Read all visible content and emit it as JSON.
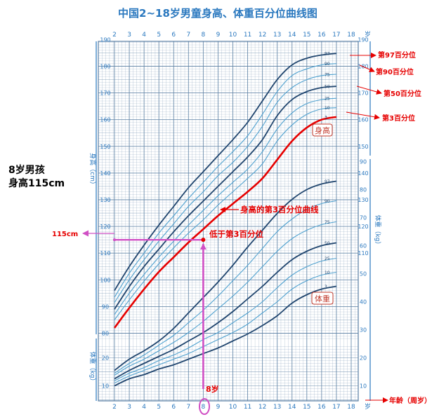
{
  "chart_data": {
    "type": "line",
    "title": "中国2~18岁男童身高、体重百分位曲线图",
    "x_ticks": [
      "2",
      "3",
      "4",
      "5",
      "6",
      "7",
      "8",
      "9",
      "10",
      "11",
      "12",
      "13",
      "14",
      "15",
      "16",
      "17",
      "18"
    ],
    "x_unit": "岁",
    "xlim": [
      2,
      18
    ],
    "height_axis": {
      "label": "身高（cm）",
      "ticks": [
        "80",
        "90",
        "100",
        "110",
        "120",
        "130",
        "140",
        "150",
        "160",
        "170",
        "180",
        "190"
      ],
      "ylim": [
        78,
        190
      ]
    },
    "weight_axis_upper": {
      "label": "体重（kg）",
      "ticks": [
        "10",
        "20",
        "30",
        "40",
        "50",
        "60",
        "70",
        "80",
        "90"
      ],
      "ylim": [
        5,
        90
      ]
    },
    "weight_axis_lower": {
      "label": "体重（kg）",
      "ticks": [
        "10",
        "20"
      ],
      "ylim": [
        5,
        25
      ]
    },
    "x": [
      2,
      3,
      4,
      5,
      6,
      7,
      8,
      9,
      10,
      11,
      12,
      13,
      14,
      15,
      16,
      17,
      18
    ],
    "series": [
      {
        "name": "97",
        "group": "height",
        "values": [
          96,
          105,
          113,
          120.5,
          127.5,
          134.5,
          140.5,
          146.5,
          152.5,
          159,
          167,
          175,
          180.5,
          183,
          184.2,
          184.8,
          null
        ]
      },
      {
        "name": "90",
        "group": "height",
        "values": [
          93.5,
          102.5,
          110,
          117.5,
          124,
          130.5,
          136.5,
          142.5,
          148,
          154,
          162,
          170.5,
          176.5,
          179,
          180.5,
          181,
          null
        ]
      },
      {
        "name": "75",
        "group": "height",
        "values": [
          91.5,
          100,
          107.5,
          114.5,
          121,
          127.5,
          133,
          139,
          144,
          150,
          157.5,
          166.5,
          172,
          175,
          176.5,
          177,
          null
        ]
      },
      {
        "name": "50",
        "group": "height",
        "values": [
          89,
          97.5,
          105,
          111.5,
          118,
          124,
          129.5,
          135,
          140.5,
          146,
          152.5,
          161.5,
          167.5,
          170.5,
          172,
          172.5,
          null
        ]
      },
      {
        "name": "25",
        "group": "height",
        "values": [
          87,
          95,
          102,
          108.5,
          114.5,
          120.5,
          126,
          131.5,
          136.5,
          141.5,
          148,
          156.5,
          162.5,
          166,
          167.5,
          168,
          null
        ]
      },
      {
        "name": "10",
        "group": "height",
        "values": [
          85,
          92.5,
          99.5,
          106,
          112,
          117.5,
          122.5,
          128,
          133,
          138,
          143.5,
          152,
          158,
          162,
          164,
          164.5,
          null
        ]
      },
      {
        "name": "3",
        "group": "height",
        "values": [
          82,
          89.5,
          96.5,
          103,
          108.5,
          114,
          119,
          124,
          128.5,
          133,
          138,
          145,
          152,
          157,
          160,
          161,
          null
        ]
      },
      {
        "name": "97",
        "group": "weight",
        "values": [
          15.5,
          19.5,
          22.5,
          26,
          30.5,
          36,
          41.5,
          47,
          53,
          59.5,
          65.5,
          71.5,
          76.5,
          80,
          82,
          83,
          null
        ]
      },
      {
        "name": "90",
        "group": "weight",
        "values": [
          14.5,
          18,
          21,
          24.5,
          28,
          32.5,
          37,
          42,
          47.5,
          53,
          59,
          65,
          69.5,
          73,
          75,
          76,
          null
        ]
      },
      {
        "name": "75",
        "group": "weight",
        "values": [
          13.8,
          17,
          19.5,
          22.5,
          25.5,
          29,
          33,
          37.5,
          42,
          47,
          52.5,
          58,
          62.5,
          65.5,
          67.5,
          68.5,
          null
        ]
      },
      {
        "name": "50",
        "group": "weight",
        "values": [
          12.5,
          15.5,
          18,
          20.5,
          23,
          26,
          29,
          32.5,
          36.5,
          41,
          45.5,
          50.5,
          55,
          58,
          60,
          61,
          null
        ]
      },
      {
        "name": "25",
        "group": "weight",
        "values": [
          11.8,
          14.5,
          16.5,
          19,
          21,
          23.5,
          26.5,
          29,
          32.5,
          36,
          40,
          45,
          49.5,
          52.5,
          54.5,
          55.5,
          null
        ]
      },
      {
        "name": "10",
        "group": "weight",
        "values": [
          11,
          13.5,
          15.5,
          17.5,
          19.5,
          21.5,
          24,
          26.5,
          29,
          32,
          36,
          40,
          44.5,
          47.5,
          49.5,
          50.5,
          null
        ]
      },
      {
        "name": "3",
        "group": "weight",
        "values": [
          10,
          12.5,
          14,
          16,
          17.5,
          19.5,
          21.5,
          23.5,
          26,
          28.5,
          31.5,
          35,
          39.5,
          42.5,
          44.5,
          45.5,
          null
        ]
      }
    ],
    "box_labels": {
      "height": "身高",
      "weight": "体重"
    },
    "annotations": {
      "child_label": "8岁男孩",
      "child_height": "身高115cm",
      "left_value": "115cm",
      "below_p3": "低于第3百分位",
      "p3_curve": "身高的第3百分位曲线",
      "p97": "第97百分位",
      "p90": "第90百分位",
      "p50": "第50百分位",
      "p3": "第3百分位",
      "age_marker": "8岁",
      "axis_note": "年龄（周岁）"
    },
    "point": {
      "age": 8,
      "height": 115
    },
    "colors": {
      "grid": "#5b7fa3",
      "main_curve": "#20456e",
      "light_curve": "#4fa1cf",
      "highlight": "#e60000",
      "marker": "#d04fc4",
      "title": "#2a78bf",
      "axis_text": "#2a78bf"
    }
  }
}
